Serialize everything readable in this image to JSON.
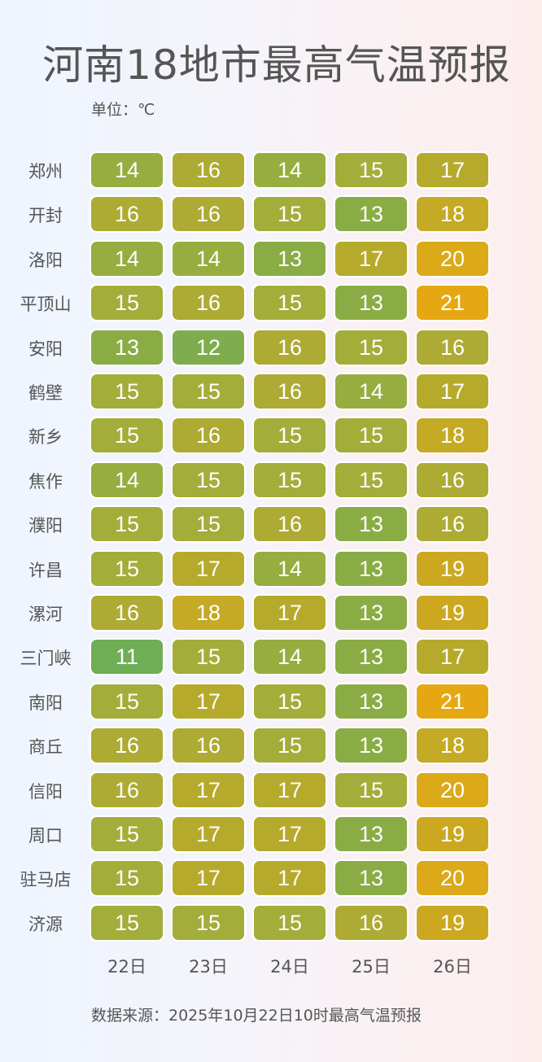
{
  "title": "河南18地市最高气温预报",
  "unit_label": "单位：℃",
  "source_label": "数据来源：2025年10月22日10时最高气温预报",
  "dates": [
    "22日",
    "23日",
    "24日",
    "25日",
    "26日"
  ],
  "color_scale": {
    "11": "#6fae55",
    "12": "#7fac4c",
    "13": "#8aac45",
    "14": "#97ad40",
    "15": "#a3ad3a",
    "16": "#adab33",
    "17": "#b6aa2c",
    "18": "#c4aa25",
    "19": "#cca821",
    "20": "#dca919",
    "21": "#e6a812"
  },
  "rows": [
    {
      "city": "郑州",
      "values": [
        14,
        16,
        14,
        15,
        17
      ]
    },
    {
      "city": "开封",
      "values": [
        16,
        16,
        15,
        13,
        18
      ]
    },
    {
      "city": "洛阳",
      "values": [
        14,
        14,
        13,
        17,
        20
      ]
    },
    {
      "city": "平顶山",
      "values": [
        15,
        16,
        15,
        13,
        21
      ]
    },
    {
      "city": "安阳",
      "values": [
        13,
        12,
        16,
        15,
        16
      ]
    },
    {
      "city": "鹤壁",
      "values": [
        15,
        15,
        16,
        14,
        17
      ]
    },
    {
      "city": "新乡",
      "values": [
        15,
        16,
        15,
        15,
        18
      ]
    },
    {
      "city": "焦作",
      "values": [
        14,
        15,
        15,
        15,
        16
      ]
    },
    {
      "city": "濮阳",
      "values": [
        15,
        15,
        16,
        13,
        16
      ]
    },
    {
      "city": "许昌",
      "values": [
        15,
        17,
        14,
        13,
        19
      ]
    },
    {
      "city": "漯河",
      "values": [
        16,
        18,
        17,
        13,
        19
      ]
    },
    {
      "city": "三门峡",
      "values": [
        11,
        15,
        14,
        13,
        17
      ]
    },
    {
      "city": "南阳",
      "values": [
        15,
        17,
        15,
        13,
        21
      ]
    },
    {
      "city": "商丘",
      "values": [
        16,
        16,
        15,
        13,
        18
      ]
    },
    {
      "city": "信阳",
      "values": [
        16,
        17,
        17,
        15,
        20
      ]
    },
    {
      "city": "周口",
      "values": [
        15,
        17,
        17,
        13,
        19
      ]
    },
    {
      "city": "驻马店",
      "values": [
        15,
        17,
        17,
        13,
        20
      ]
    },
    {
      "city": "济源",
      "values": [
        15,
        15,
        15,
        16,
        19
      ]
    }
  ],
  "chart_data": {
    "type": "heatmap",
    "title": "河南18地市最高气温预报",
    "subtitle": "单位：℃",
    "x": [
      "22日",
      "23日",
      "24日",
      "25日",
      "26日"
    ],
    "y": [
      "郑州",
      "开封",
      "洛阳",
      "平顶山",
      "安阳",
      "鹤壁",
      "新乡",
      "焦作",
      "濮阳",
      "许昌",
      "漯河",
      "三门峡",
      "南阳",
      "商丘",
      "信阳",
      "周口",
      "驻马店",
      "济源"
    ],
    "values": [
      [
        14,
        16,
        14,
        15,
        17
      ],
      [
        16,
        16,
        15,
        13,
        18
      ],
      [
        14,
        14,
        13,
        17,
        20
      ],
      [
        15,
        16,
        15,
        13,
        21
      ],
      [
        13,
        12,
        16,
        15,
        16
      ],
      [
        15,
        15,
        16,
        14,
        17
      ],
      [
        15,
        16,
        15,
        15,
        18
      ],
      [
        14,
        15,
        15,
        15,
        16
      ],
      [
        15,
        15,
        16,
        13,
        16
      ],
      [
        15,
        17,
        14,
        13,
        19
      ],
      [
        16,
        18,
        17,
        13,
        19
      ],
      [
        11,
        15,
        14,
        13,
        17
      ],
      [
        15,
        17,
        15,
        13,
        21
      ],
      [
        16,
        16,
        15,
        13,
        18
      ],
      [
        16,
        17,
        17,
        15,
        20
      ],
      [
        15,
        17,
        17,
        13,
        19
      ],
      [
        15,
        17,
        17,
        13,
        20
      ],
      [
        15,
        15,
        15,
        16,
        19
      ]
    ],
    "colormap": "green (low) to orange (high)",
    "value_range": [
      11,
      21
    ],
    "annotation": "数据来源：2025年10月22日10时最高气温预报"
  }
}
